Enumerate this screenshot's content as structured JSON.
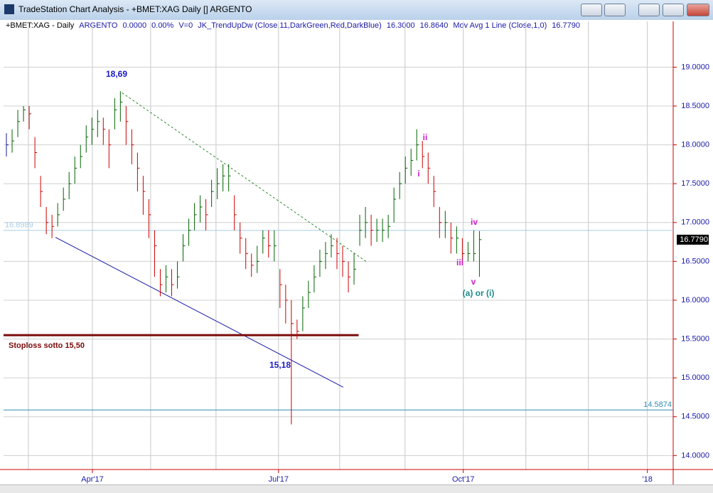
{
  "window": {
    "title": "TradeStation Chart Analysis - +BMET:XAG Daily [] ARGENTO"
  },
  "chart_data": {
    "type": "ohlc",
    "info": [
      "+BMET:XAG - Daily",
      "ARGENTO",
      "0.0000",
      "0.00%",
      "V=0",
      "JK_TrendUpDw (Close,11,DarkGreen,Red,DarkBlue)",
      "16.3000",
      "16.8640",
      "Mov Avg 1 Line (Close,1,0)",
      "16.7790"
    ],
    "close": [
      18.0,
      18.05,
      18.3,
      18.45,
      18.4,
      17.9,
      17.4,
      17.0,
      16.95,
      17.1,
      17.3,
      17.5,
      17.7,
      17.85,
      18.1,
      18.2,
      18.3,
      18.2,
      18.0,
      18.45,
      18.55,
      18.3,
      18.0,
      17.7,
      17.4,
      17.1,
      16.7,
      16.2,
      16.3,
      16.2,
      16.3,
      16.7,
      16.9,
      17.1,
      17.2,
      17.1,
      17.4,
      17.5,
      17.6,
      17.6,
      17.1,
      16.8,
      16.6,
      16.45,
      16.5,
      16.8,
      16.7,
      16.7,
      16.2,
      16.0,
      15.7,
      15.6,
      15.9,
      16.1,
      16.3,
      16.5,
      16.6,
      16.7,
      16.6,
      16.5,
      16.3,
      16.4,
      16.9,
      17.0,
      16.9,
      16.9,
      16.9,
      16.95,
      17.3,
      17.5,
      17.7,
      17.8,
      18.0,
      17.85,
      17.7,
      17.4,
      17.0,
      17.0,
      16.8,
      16.8,
      16.6,
      16.6,
      16.6,
      16.78
    ],
    "high": [
      18.15,
      18.2,
      18.45,
      18.5,
      18.5,
      18.1,
      17.6,
      17.2,
      17.1,
      17.25,
      17.45,
      17.65,
      17.85,
      18.0,
      18.25,
      18.35,
      18.45,
      18.35,
      18.2,
      18.6,
      18.69,
      18.5,
      18.2,
      17.9,
      17.6,
      17.3,
      16.9,
      16.4,
      16.45,
      16.4,
      16.5,
      16.85,
      17.05,
      17.25,
      17.35,
      17.3,
      17.55,
      17.7,
      17.75,
      17.75,
      17.35,
      17.0,
      16.8,
      16.6,
      16.7,
      16.9,
      16.9,
      16.9,
      16.4,
      16.2,
      16.0,
      15.75,
      16.05,
      16.25,
      16.45,
      16.65,
      16.75,
      16.85,
      16.8,
      16.7,
      16.5,
      16.6,
      17.1,
      17.2,
      17.1,
      17.05,
      17.05,
      17.1,
      17.45,
      17.65,
      17.85,
      17.95,
      18.2,
      18.05,
      17.9,
      17.6,
      17.2,
      17.15,
      17.0,
      16.95,
      16.8,
      16.75,
      16.9,
      16.89
    ],
    "low": [
      17.85,
      17.9,
      18.1,
      18.3,
      18.2,
      17.7,
      17.2,
      16.85,
      16.8,
      16.95,
      17.15,
      17.3,
      17.5,
      17.7,
      17.9,
      18.0,
      18.1,
      18.0,
      17.7,
      18.2,
      18.3,
      18.0,
      17.75,
      17.4,
      17.1,
      16.8,
      16.3,
      16.05,
      16.1,
      16.05,
      16.15,
      16.5,
      16.7,
      16.9,
      17.0,
      16.9,
      17.2,
      17.3,
      17.4,
      17.4,
      16.9,
      16.6,
      16.4,
      16.3,
      16.35,
      16.6,
      16.55,
      16.5,
      15.9,
      15.7,
      14.4,
      15.5,
      15.6,
      15.9,
      16.1,
      16.3,
      16.4,
      16.55,
      16.4,
      16.3,
      16.1,
      16.2,
      16.7,
      16.8,
      16.7,
      16.75,
      16.75,
      16.8,
      17.0,
      17.3,
      17.5,
      17.6,
      17.8,
      17.7,
      17.5,
      17.2,
      16.8,
      16.8,
      16.6,
      16.6,
      16.5,
      16.5,
      16.5,
      16.3
    ],
    "up_color": "#006400",
    "down_color": "#cc0000",
    "xlim": [
      0,
      117.5
    ],
    "ylim": [
      13.82,
      19.59
    ],
    "xticks": [
      {
        "value": 15.59,
        "label": "Apr'17"
      },
      {
        "value": 48.25,
        "label": "Jul'17"
      },
      {
        "value": 80.67,
        "label": "Oct'17"
      },
      {
        "value": 112.97,
        "label": "'18"
      }
    ],
    "xgrid": [
      4.36,
      15.59,
      25.81,
      37.28,
      48.25,
      58.98,
      70.45,
      80.67,
      91.65,
      102.62,
      112.97
    ],
    "yticks": [
      {
        "value": 14,
        "label": "14.0000"
      },
      {
        "value": 14.5,
        "label": "14.5000"
      },
      {
        "value": 15,
        "label": "15.0000"
      },
      {
        "value": 15.5,
        "label": "15.5000"
      },
      {
        "value": 16,
        "label": "16.0000"
      },
      {
        "value": 16.5,
        "label": "16.5000"
      },
      {
        "value": 17,
        "label": "17.0000"
      },
      {
        "value": 17.5,
        "label": "17.5000"
      },
      {
        "value": 18,
        "label": "18.0000"
      },
      {
        "value": 18.5,
        "label": "18.5000"
      },
      {
        "value": 19,
        "label": "19.0000"
      }
    ],
    "last_price": {
      "value": 16.779,
      "label": "16.7790"
    },
    "hlines": [
      {
        "value": 16.8989,
        "label": "16.8989",
        "color": "#a8cde8"
      },
      {
        "value": 14.5874,
        "label": "14.5874",
        "color": "#2f8fb5"
      }
    ],
    "trendlines": [
      {
        "x": [
          9.1,
          59.6
        ],
        "y": [
          16.81,
          14.88
        ],
        "color": "#1a1aa8",
        "dash": false,
        "width": 1
      },
      {
        "x": [
          20.8,
          63.6
        ],
        "y": [
          18.67,
          16.5
        ],
        "color": "#2a8a2a",
        "dash": true,
        "width": 1
      },
      {
        "x": [
          0,
          62.3
        ],
        "y": [
          15.55,
          15.55
        ],
        "color": "#7a0a0a",
        "dash": false,
        "width": 3
      }
    ],
    "annotations": [
      "18,69",
      "15,18",
      "Stoploss  sotto 15,50",
      "ii",
      "i",
      "iii",
      "iv",
      "v",
      "(a) or (i)"
    ]
  }
}
